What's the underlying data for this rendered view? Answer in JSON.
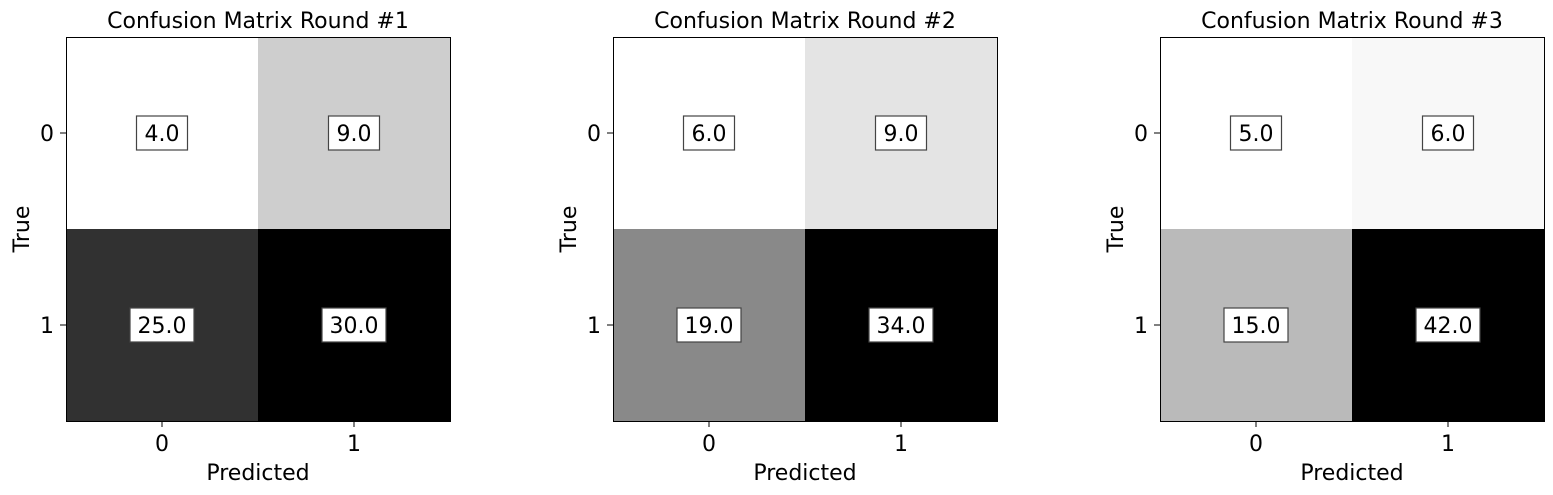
{
  "chart_data": [
    {
      "type": "heatmap",
      "title": "Confusion Matrix Round #1",
      "xlabel": "Predicted",
      "ylabel": "True",
      "x_categories": [
        "0",
        "1"
      ],
      "y_categories": [
        "0",
        "1"
      ],
      "values": [
        [
          4.0,
          9.0
        ],
        [
          25.0,
          30.0
        ]
      ],
      "cell_labels": [
        [
          "4.0",
          "9.0"
        ],
        [
          "25.0",
          "30.0"
        ]
      ],
      "colormap": "greys",
      "grid": false
    },
    {
      "type": "heatmap",
      "title": "Confusion Matrix Round #2",
      "xlabel": "Predicted",
      "ylabel": "True",
      "x_categories": [
        "0",
        "1"
      ],
      "y_categories": [
        "0",
        "1"
      ],
      "values": [
        [
          6.0,
          9.0
        ],
        [
          19.0,
          34.0
        ]
      ],
      "cell_labels": [
        [
          "6.0",
          "9.0"
        ],
        [
          "19.0",
          "34.0"
        ]
      ],
      "colormap": "greys",
      "grid": false
    },
    {
      "type": "heatmap",
      "title": "Confusion Matrix Round #3",
      "xlabel": "Predicted",
      "ylabel": "True",
      "x_categories": [
        "0",
        "1"
      ],
      "y_categories": [
        "0",
        "1"
      ],
      "values": [
        [
          5.0,
          6.0
        ],
        [
          15.0,
          42.0
        ]
      ],
      "cell_labels": [
        [
          "5.0",
          "6.0"
        ],
        [
          "15.0",
          "42.0"
        ]
      ],
      "colormap": "greys",
      "grid": false
    }
  ]
}
